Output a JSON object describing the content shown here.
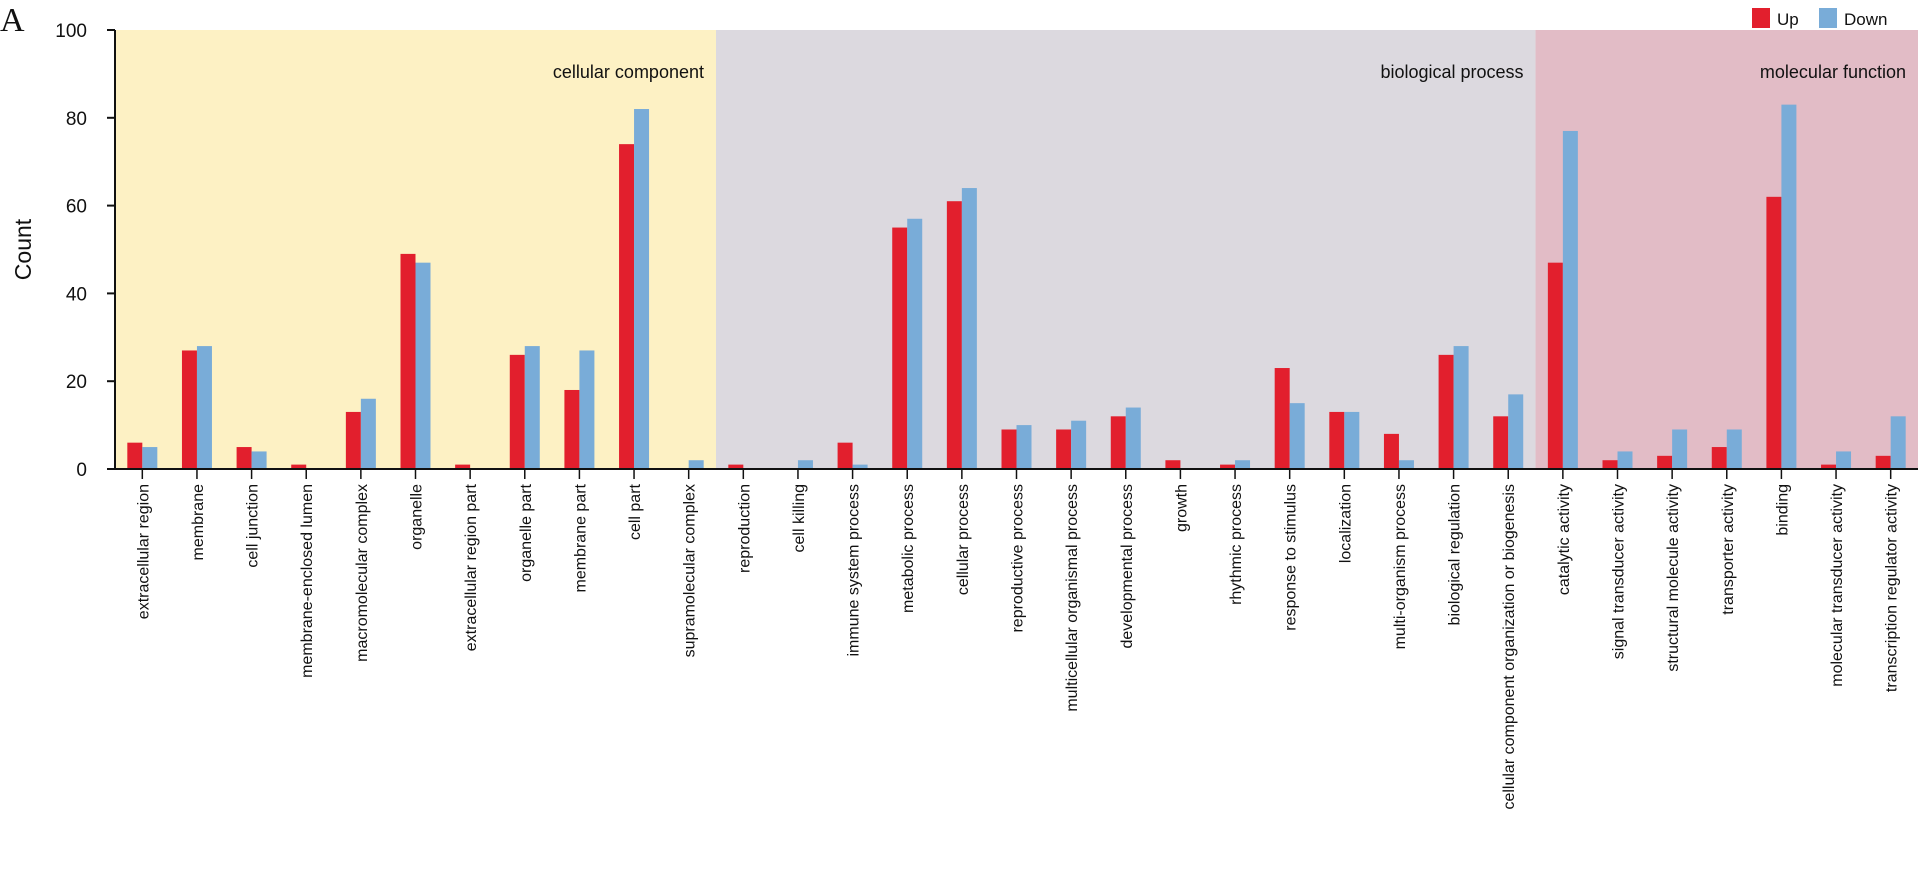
{
  "panel_label": "A",
  "colors": {
    "up": "#e21f2d",
    "down": "#79acd8",
    "cellular_component_bg": "#fdf1c4",
    "biological_process_bg": "#dcd9df",
    "molecular_function_bg": "#e2bcc6",
    "axis": "#111111"
  },
  "chart_data": {
    "type": "bar",
    "title": "",
    "xlabel": "",
    "ylabel": "Count",
    "ylim": [
      0,
      100
    ],
    "yticks": [
      0,
      20,
      40,
      60,
      80,
      100
    ],
    "legend": {
      "position": "top-right",
      "entries": [
        "Up",
        "Down"
      ]
    },
    "categories": [
      "extracellular region",
      "membrane",
      "cell junction",
      "membrane-enclosed lumen",
      "macromolecular complex",
      "organelle",
      "extracellular region part",
      "organelle part",
      "membrane part",
      "cell part",
      "supramolecular complex",
      "reproduction",
      "cell killing",
      "immune system process",
      "metabolic process",
      "cellular process",
      "reproductive process",
      "multicellular organismal process",
      "developmental process",
      "growth",
      "rhythmic process",
      "response to stimulus",
      "localization",
      "multi-organism process",
      "biological regulation",
      "cellular component organization or biogenesis",
      "catalytic activity",
      "signal transducer activity",
      "structural molecule activity",
      "transporter activity",
      "binding",
      "molecular transducer activity",
      "transcription regulator activity"
    ],
    "series": [
      {
        "name": "Up",
        "values": [
          6,
          27,
          5,
          1,
          13,
          49,
          1,
          26,
          18,
          74,
          0,
          1,
          0,
          6,
          55,
          61,
          9,
          9,
          12,
          2,
          1,
          23,
          13,
          8,
          26,
          12,
          47,
          2,
          3,
          5,
          62,
          1,
          3
        ]
      },
      {
        "name": "Down",
        "values": [
          5,
          28,
          4,
          0,
          16,
          47,
          0,
          28,
          27,
          82,
          2,
          0,
          2,
          1,
          57,
          64,
          10,
          11,
          14,
          0,
          2,
          15,
          13,
          2,
          28,
          17,
          77,
          4,
          9,
          9,
          83,
          4,
          12
        ]
      }
    ],
    "groups": [
      {
        "name": "cellular component",
        "start": 0,
        "end": 10
      },
      {
        "name": "biological process",
        "start": 11,
        "end": 25
      },
      {
        "name": "molecular function",
        "start": 26,
        "end": 32
      }
    ]
  }
}
